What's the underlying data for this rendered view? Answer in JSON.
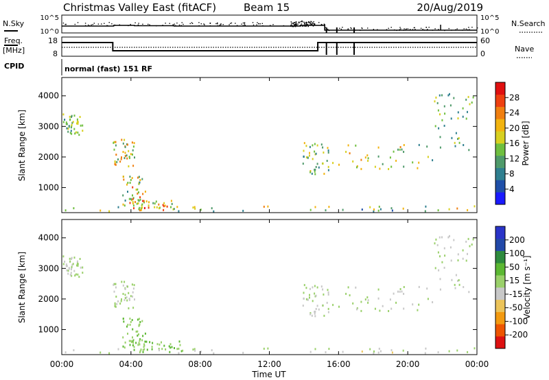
{
  "header": {
    "title": "Christmas Valley East (fitACF)",
    "beam": "Beam 15",
    "date": "20/Aug/2019"
  },
  "top_strip": {
    "nsky_label": "N.Sky",
    "nsearch_label": "N.Search",
    "count_ticks": [
      "10^5",
      "10^0"
    ],
    "freq_label_1": "Freq.",
    "freq_label_2": "[MHz]",
    "freq_ticks": [
      "18",
      "8"
    ],
    "nave_label": "Nave",
    "nave_ticks": [
      "60",
      "0"
    ],
    "cpid_label": "CPID",
    "cpid_text": "normal (fast) 151 RF"
  },
  "colors": {
    "power": [
      "#1a1aff",
      "#1f4fa8",
      "#2f7f8f",
      "#4f9a6a",
      "#6fbf3f",
      "#d8d020",
      "#f2b410",
      "#f07f10",
      "#ee4010",
      "#e01010"
    ],
    "velocity": [
      "#dd1111",
      "#ee5500",
      "#f39a10",
      "#ecc45a",
      "#c8c8c8",
      "#9ad06a",
      "#5cb832",
      "#2e8b3e",
      "#2249a8",
      "#2a34c8"
    ]
  },
  "chart_data": [
    {
      "type": "heatmap",
      "name": "power",
      "ylabel": "Slant Range [km]",
      "xlabel": "",
      "x_ticks": [
        "00:00",
        "04:00",
        "08:00",
        "12:00",
        "16:00",
        "20:00",
        "00:00"
      ],
      "y_ticks": [
        "1000",
        "2000",
        "3000",
        "4000"
      ],
      "xlim_hours": [
        0,
        24
      ],
      "ylim_km": [
        180,
        4600
      ],
      "colorbar_label": "Power [dB]",
      "colorbar_ticks": [
        "4",
        "8",
        "12",
        "16",
        "20",
        "24",
        "28"
      ],
      "colorbar_range": [
        0,
        30
      ],
      "scatter_regions": [
        {
          "t": [
            0.0,
            1.2
          ],
          "r": [
            2700,
            3450
          ],
          "vals": [
            8,
            18
          ]
        },
        {
          "t": [
            2.9,
            4.2
          ],
          "r": [
            1650,
            2550
          ],
          "vals": [
            10,
            24
          ]
        },
        {
          "t": [
            3.5,
            4.8
          ],
          "r": [
            350,
            1350
          ],
          "vals": [
            8,
            26
          ]
        },
        {
          "t": [
            4.0,
            6.5
          ],
          "r": [
            250,
            600
          ],
          "vals": [
            10,
            28
          ]
        },
        {
          "t": [
            13.9,
            15.5
          ],
          "r": [
            1400,
            2450
          ],
          "vals": [
            8,
            20
          ]
        },
        {
          "t": [
            15.2,
            21.5
          ],
          "r": [
            1550,
            2400
          ],
          "vals": [
            8,
            22
          ]
        },
        {
          "t": [
            21.5,
            23.8
          ],
          "r": [
            2200,
            4100
          ],
          "vals": [
            6,
            18
          ]
        },
        {
          "t": [
            0.0,
            24.0
          ],
          "r": [
            200,
            380
          ],
          "vals": [
            4,
            22
          ]
        }
      ]
    },
    {
      "type": "heatmap",
      "name": "velocity",
      "ylabel": "Slant Range [km]",
      "xlabel": "Time UT",
      "x_ticks": [
        "00:00",
        "04:00",
        "08:00",
        "12:00",
        "16:00",
        "20:00",
        "00:00"
      ],
      "y_ticks": [
        "1000",
        "2000",
        "3000",
        "4000"
      ],
      "xlim_hours": [
        0,
        24
      ],
      "ylim_km": [
        180,
        4600
      ],
      "colorbar_label": "Velocity [m s⁻¹]",
      "colorbar_ticks": [
        "-200",
        "-100",
        "-50",
        "-15",
        "15",
        "50",
        "100",
        "200"
      ],
      "colorbar_range": [
        -250,
        250
      ],
      "scatter_regions": [
        {
          "t": [
            0.0,
            1.2
          ],
          "r": [
            2700,
            3450
          ],
          "vals": [
            -15,
            15
          ]
        },
        {
          "t": [
            2.9,
            4.2
          ],
          "r": [
            1650,
            2550
          ],
          "vals": [
            -20,
            30
          ]
        },
        {
          "t": [
            3.5,
            4.8
          ],
          "r": [
            350,
            1350
          ],
          "vals": [
            15,
            80
          ]
        },
        {
          "t": [
            4.0,
            7.0
          ],
          "r": [
            250,
            650
          ],
          "vals": [
            20,
            90
          ]
        },
        {
          "t": [
            13.9,
            15.5
          ],
          "r": [
            1400,
            2450
          ],
          "vals": [
            -20,
            20
          ]
        },
        {
          "t": [
            15.2,
            21.5
          ],
          "r": [
            1550,
            2400
          ],
          "vals": [
            -40,
            40
          ]
        },
        {
          "t": [
            21.5,
            23.8
          ],
          "r": [
            2200,
            4100
          ],
          "vals": [
            -20,
            20
          ]
        },
        {
          "t": [
            0.0,
            24.0
          ],
          "r": [
            200,
            380
          ],
          "vals": [
            -60,
            30
          ]
        }
      ]
    }
  ]
}
